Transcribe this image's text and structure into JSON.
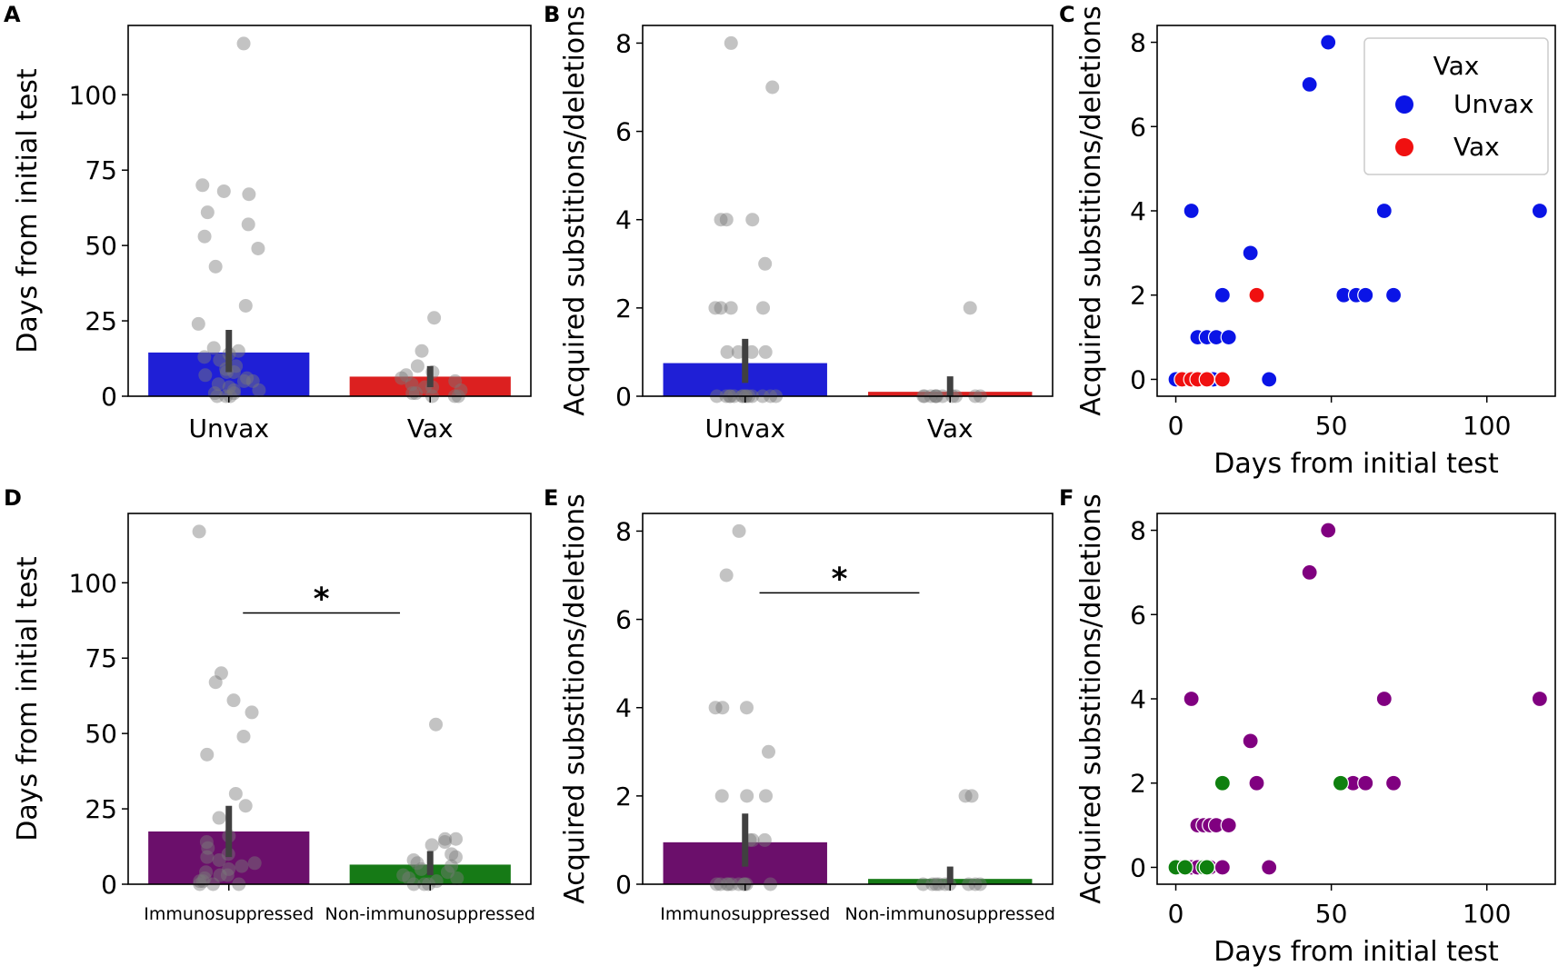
{
  "colors": {
    "unvax": "#1f1fd6",
    "vax": "#dc2020",
    "immuno": "#6b0f6b",
    "nonimmuno": "#167a16",
    "scatter_blue": "#0a14e6",
    "scatter_red": "#f01010",
    "scatter_purple": "#800080",
    "scatter_green": "#0f800f",
    "strip": "#7a7a7a",
    "errbar": "#404040"
  },
  "chart_data": [
    {
      "id": "A",
      "type": "bar",
      "panel_label": "A",
      "categories": [
        "Unvax",
        "Vax"
      ],
      "values": [
        14.5,
        6.5
      ],
      "ci": [
        [
          8,
          22
        ],
        [
          3,
          10
        ]
      ],
      "ylabel": "Days from initial test",
      "xlabel": "",
      "ylim": [
        0,
        123
      ],
      "yticks": [
        0,
        25,
        50,
        75,
        100
      ],
      "category_font": "large",
      "strip": [
        [
          117,
          70,
          68,
          67,
          61,
          57,
          53,
          49,
          43,
          30,
          24,
          16,
          15,
          14,
          13,
          12,
          10,
          9,
          8,
          7,
          6,
          5,
          4,
          3,
          2,
          1,
          1,
          0,
          0,
          0,
          2,
          5,
          8
        ],
        [
          26,
          15,
          10,
          8,
          7,
          6,
          5,
          4,
          3,
          2,
          1,
          0,
          0,
          0,
          1,
          3
        ]
      ],
      "significance": null
    },
    {
      "id": "B",
      "type": "bar",
      "panel_label": "B",
      "categories": [
        "Unvax",
        "Vax"
      ],
      "values": [
        0.75,
        0.1
      ],
      "ci": [
        [
          0.3,
          1.3
        ],
        [
          0,
          0.45
        ]
      ],
      "ylabel": "Acquired substitions/deletions",
      "xlabel": "",
      "ylim": [
        0,
        8.4
      ],
      "yticks": [
        0,
        2,
        4,
        6,
        8
      ],
      "category_font": "large",
      "strip": [
        [
          8,
          7,
          4,
          4,
          4,
          3,
          2,
          2,
          2,
          2,
          1,
          1,
          1,
          1,
          0,
          0,
          0,
          0,
          0,
          0,
          0,
          0,
          0,
          0,
          0,
          0,
          0,
          0
        ],
        [
          2,
          0,
          0,
          0,
          0,
          0,
          0,
          0,
          0,
          0,
          0,
          0
        ]
      ],
      "significance": null
    },
    {
      "id": "C",
      "type": "scatter",
      "panel_label": "C",
      "xlabel": "Days from initial test",
      "ylabel": "Acquired substitions/deletions",
      "xlim": [
        -6,
        122
      ],
      "ylim": [
        -0.4,
        8.4
      ],
      "xticks": [
        0,
        50,
        100
      ],
      "yticks": [
        0,
        2,
        4,
        6,
        8
      ],
      "legend": {
        "title": "Vax",
        "entries": [
          "Unvax",
          "Vax"
        ],
        "position": "top-right"
      },
      "series": [
        {
          "name": "Unvax",
          "color_key": "scatter_blue",
          "x": [
            0,
            3,
            5,
            9,
            11,
            12,
            8,
            7,
            10,
            13,
            17,
            15,
            24,
            30,
            43,
            49,
            54,
            58,
            61,
            67,
            70,
            117
          ],
          "y": [
            0,
            0,
            4,
            0,
            0,
            0,
            1,
            1,
            1,
            1,
            1,
            2,
            3,
            0,
            7,
            8,
            2,
            2,
            2,
            4,
            2,
            4
          ]
        },
        {
          "name": "Vax",
          "color_key": "scatter_red",
          "x": [
            2,
            5,
            7,
            10,
            15,
            26
          ],
          "y": [
            0,
            0,
            0,
            0,
            0,
            2
          ]
        }
      ]
    },
    {
      "id": "D",
      "type": "bar",
      "panel_label": "D",
      "categories": [
        "Immunosuppressed",
        "Non-immunosuppressed"
      ],
      "values": [
        17.5,
        6.5
      ],
      "ci": [
        [
          9,
          26
        ],
        [
          3,
          11
        ]
      ],
      "ylabel": "Days from initial test",
      "xlabel": "",
      "ylim": [
        0,
        123
      ],
      "yticks": [
        0,
        25,
        50,
        75,
        100
      ],
      "category_font": "small",
      "strip": [
        [
          117,
          70,
          67,
          61,
          57,
          49,
          43,
          30,
          26,
          22,
          16,
          14,
          12,
          10,
          9,
          8,
          7,
          6,
          5,
          4,
          3,
          2,
          1,
          0,
          0,
          0,
          1,
          3
        ],
        [
          53,
          15,
          15,
          14,
          13,
          10,
          9,
          8,
          7,
          6,
          5,
          4,
          3,
          2,
          1,
          0,
          0,
          0,
          2
        ]
      ],
      "significance": {
        "label": "*",
        "at": 90
      }
    },
    {
      "id": "E",
      "type": "bar",
      "panel_label": "E",
      "categories": [
        "Immunosuppressed",
        "Non-immunosuppressed"
      ],
      "values": [
        0.95,
        0.12
      ],
      "ci": [
        [
          0.4,
          1.6
        ],
        [
          0,
          0.4
        ]
      ],
      "ylabel": "Acquired substitions/deletions",
      "xlabel": "",
      "ylim": [
        0,
        8.4
      ],
      "yticks": [
        0,
        2,
        4,
        6,
        8
      ],
      "category_font": "small",
      "strip": [
        [
          8,
          7,
          4,
          4,
          4,
          3,
          2,
          2,
          2,
          1,
          1,
          1,
          0,
          0,
          0,
          0,
          0,
          0,
          0,
          0,
          0,
          0
        ],
        [
          2,
          2,
          0,
          0,
          0,
          0,
          0,
          0,
          0,
          0,
          0
        ]
      ],
      "significance": {
        "label": "*",
        "at": 6.6
      }
    },
    {
      "id": "F",
      "type": "scatter",
      "panel_label": "F",
      "xlabel": "Days from initial test",
      "ylabel": "Acquired substitions/deletions",
      "xlim": [
        -6,
        122
      ],
      "ylim": [
        -0.4,
        8.4
      ],
      "xticks": [
        0,
        50,
        100
      ],
      "yticks": [
        0,
        2,
        4,
        6,
        8
      ],
      "legend": null,
      "series": [
        {
          "name": "Immunosuppressed",
          "color_key": "scatter_purple",
          "x": [
            2,
            5,
            7,
            10,
            11,
            15,
            30,
            7,
            9,
            11,
            13,
            17,
            26,
            24,
            5,
            43,
            49,
            57,
            61,
            67,
            70,
            117
          ],
          "y": [
            0,
            0,
            0,
            0,
            0,
            0,
            0,
            1,
            1,
            1,
            1,
            1,
            2,
            3,
            4,
            7,
            8,
            2,
            2,
            4,
            2,
            4
          ]
        },
        {
          "name": "Non-immunosuppressed",
          "color_key": "scatter_green",
          "x": [
            0,
            3,
            9,
            10,
            15,
            53
          ],
          "y": [
            0,
            0,
            0,
            0,
            2,
            2
          ]
        }
      ]
    }
  ]
}
